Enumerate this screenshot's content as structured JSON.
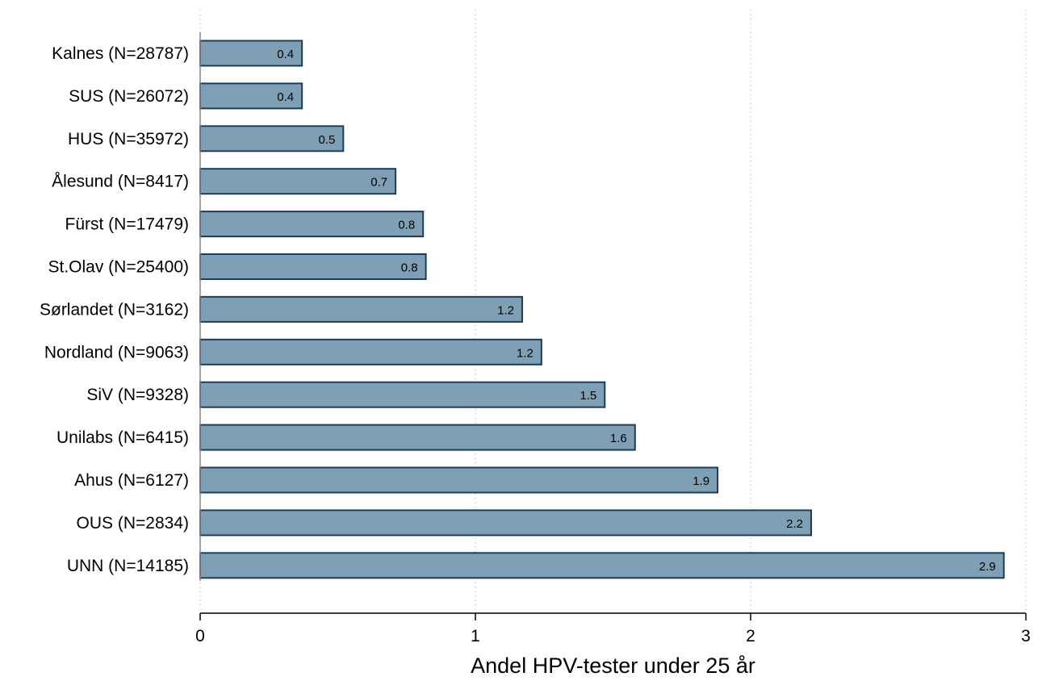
{
  "chart_data": {
    "type": "bar",
    "orientation": "horizontal",
    "categories": [
      "Kalnes (N=28787)",
      "SUS (N=26072)",
      "HUS (N=35972)",
      "Ålesund (N=8417)",
      "Fürst (N=17479)",
      "St.Olav (N=25400)",
      "Sørlandet (N=3162)",
      "Nordland (N=9063)",
      "SiV (N=9328)",
      "Unilabs (N=6415)",
      "Ahus (N=6127)",
      "OUS (N=2834)",
      "UNN (N=14185)"
    ],
    "values": [
      0.37,
      0.37,
      0.52,
      0.71,
      0.81,
      0.82,
      1.17,
      1.24,
      1.47,
      1.58,
      1.88,
      2.22,
      2.92
    ],
    "value_labels": [
      "0.4",
      "0.4",
      "0.5",
      "0.7",
      "0.8",
      "0.8",
      "1.2",
      "1.2",
      "1.5",
      "1.6",
      "1.9",
      "2.2",
      "2.9"
    ],
    "xlabel": "Andel HPV-tester under 25 år",
    "ylabel": "",
    "xlim": [
      0,
      3
    ],
    "xticks": [
      0,
      1,
      2,
      3
    ],
    "xtick_labels": [
      "0",
      "1",
      "2",
      "3"
    ],
    "grid": "vertical dotted",
    "legend": "none",
    "colors": {
      "bar_fill": "#7f9fb5",
      "bar_stroke": "#1a3d5c",
      "grid": "#c8c8c8",
      "axis": "#000000"
    }
  }
}
